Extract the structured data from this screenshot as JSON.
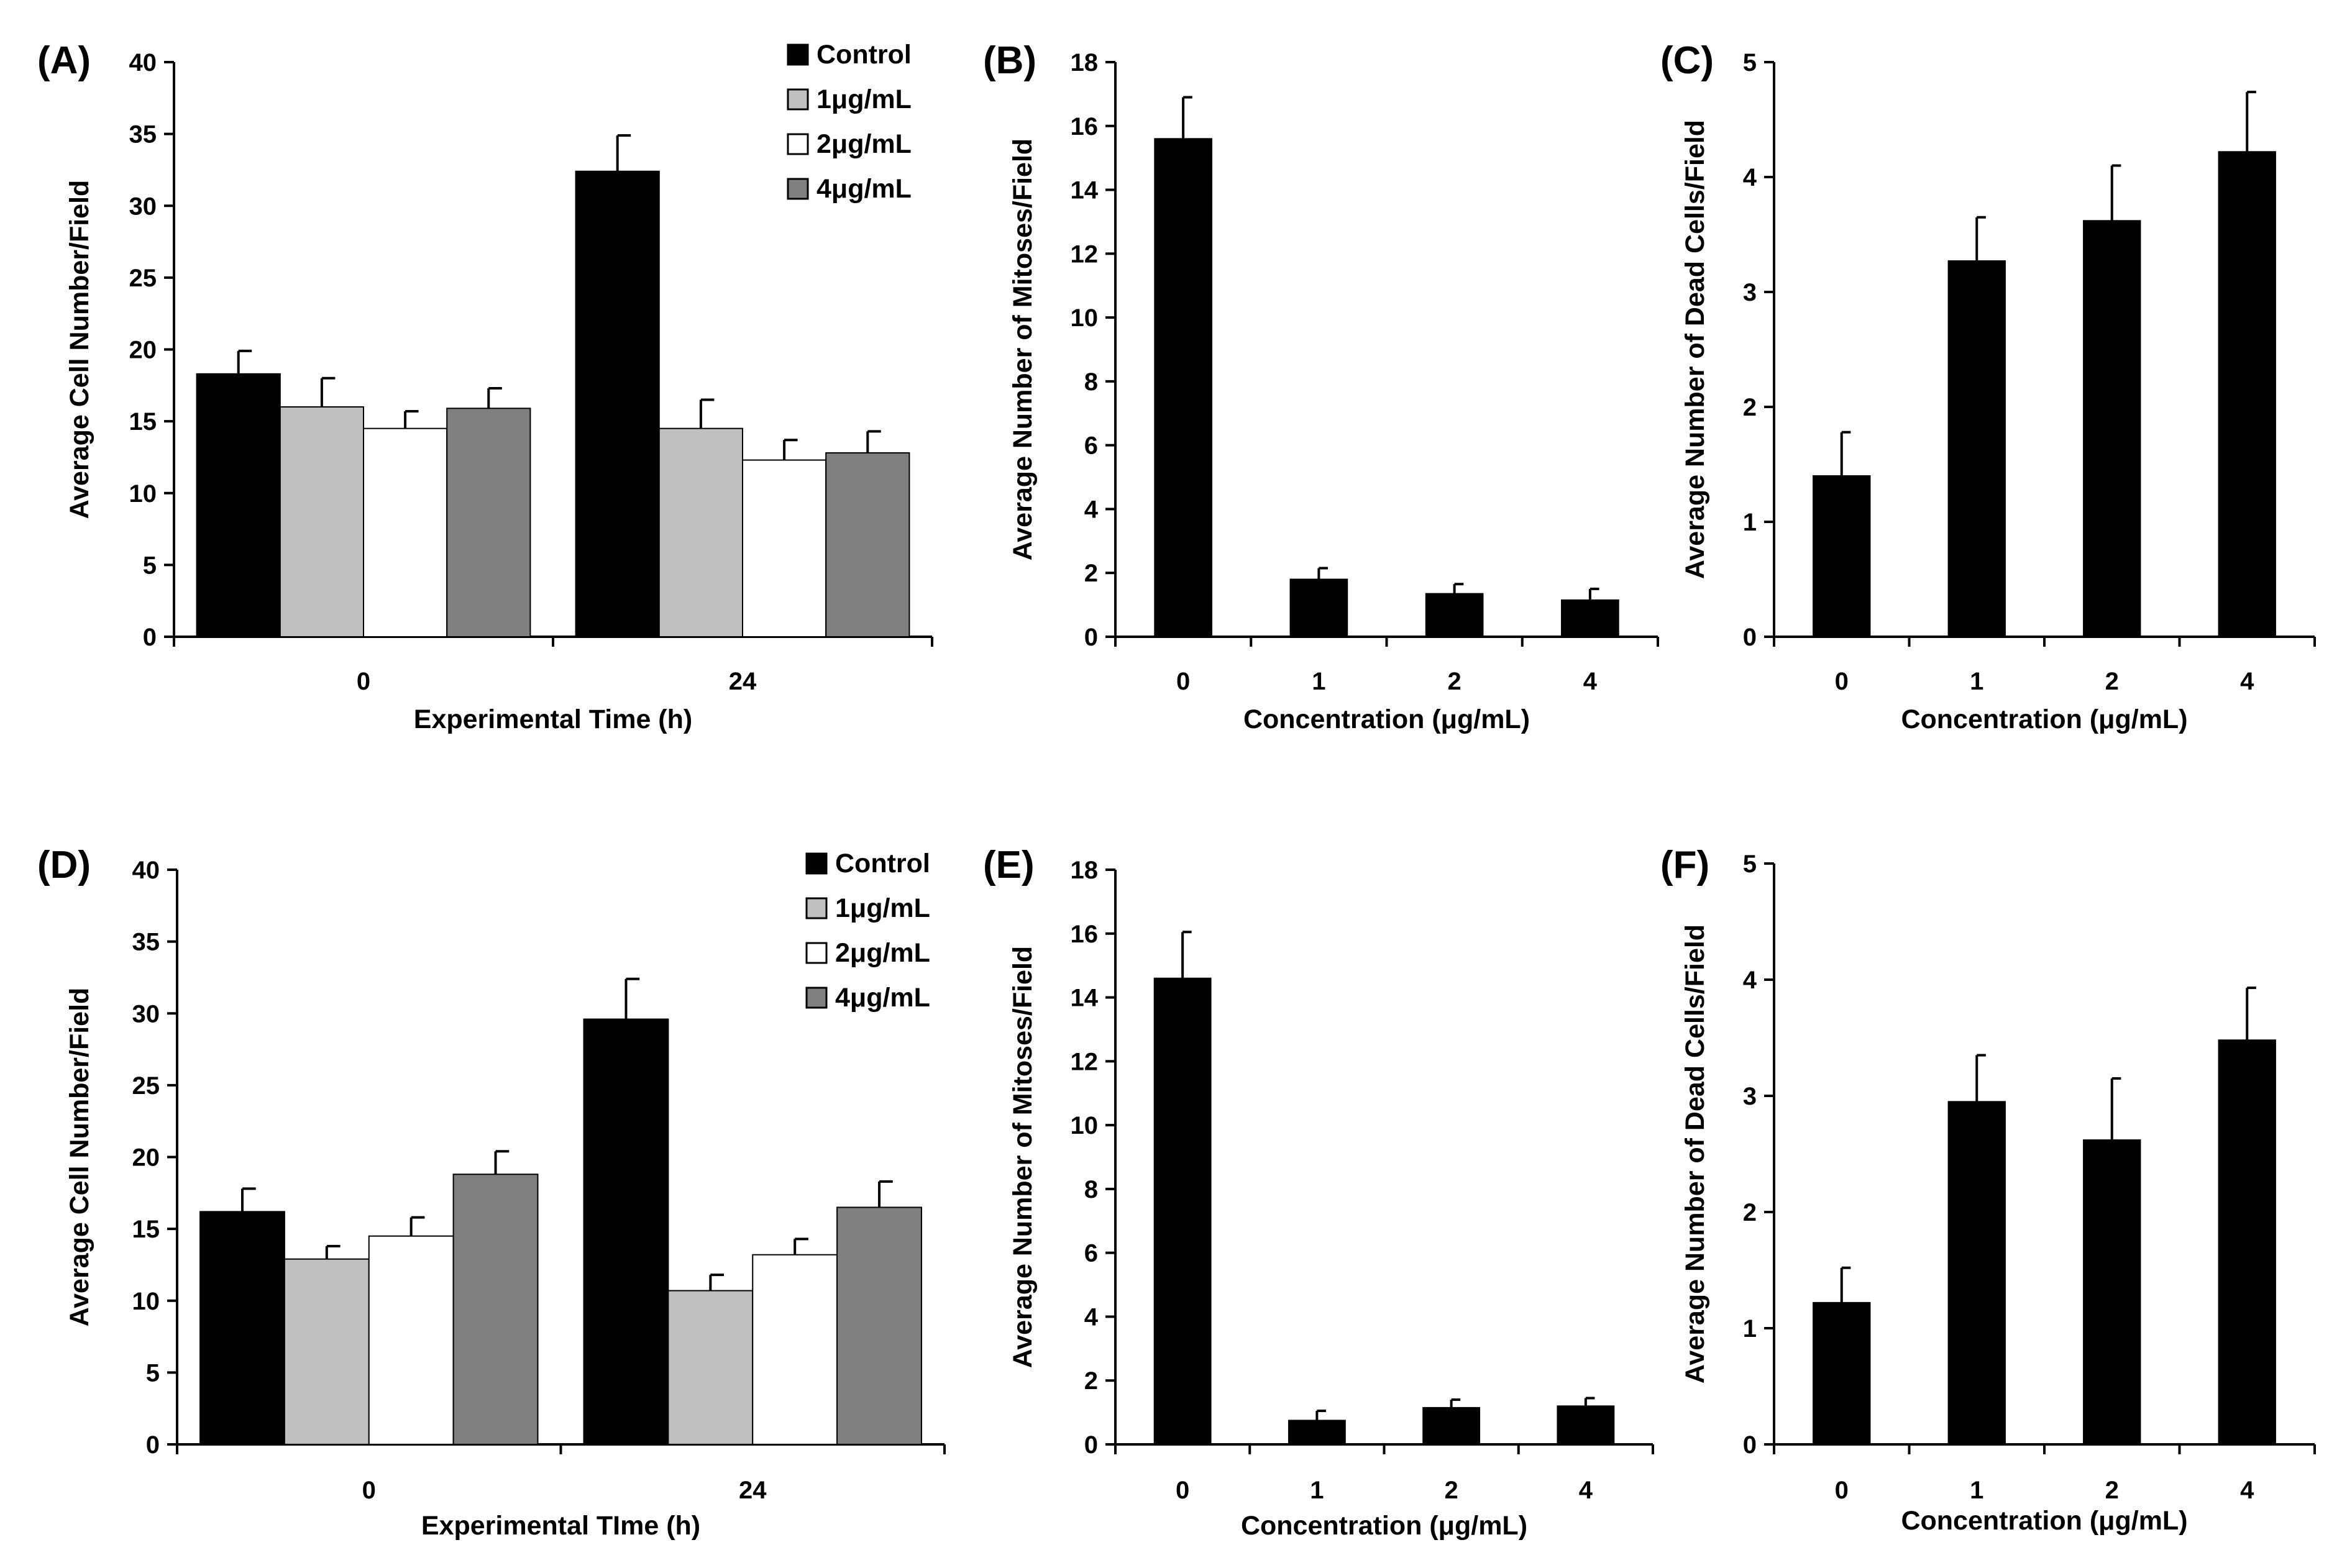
{
  "chart_data": [
    {
      "panel": "(A)",
      "type": "bar",
      "categories": [
        "0",
        "24"
      ],
      "series": [
        {
          "name": "Control",
          "color": "#000000",
          "values": [
            18.3,
            32.4
          ],
          "errors": [
            1.6,
            2.5
          ]
        },
        {
          "name": "1μg/mL",
          "color": "#c0c0c0",
          "values": [
            16.0,
            14.5
          ],
          "errors": [
            2.0,
            2.0
          ]
        },
        {
          "name": "2μg/mL",
          "color": "#ffffff",
          "values": [
            14.5,
            12.3
          ],
          "errors": [
            1.2,
            1.4
          ]
        },
        {
          "name": "4μg/mL",
          "color": "#808080",
          "values": [
            15.9,
            12.8
          ],
          "errors": [
            1.4,
            1.5
          ]
        }
      ],
      "xlabel": "Experimental Time (h)",
      "ylabel": "Average Cell Number/Field",
      "ylim": [
        0,
        40
      ],
      "yticks": [
        0,
        5,
        10,
        15,
        20,
        25,
        30,
        35,
        40
      ],
      "legend": "top-right"
    },
    {
      "panel": "(B)",
      "type": "bar",
      "categories": [
        "0",
        "1",
        "2",
        "4"
      ],
      "series": [
        {
          "name": "Mitoses",
          "color": "#000000",
          "values": [
            15.6,
            1.8,
            1.35,
            1.15
          ],
          "errors": [
            1.3,
            0.35,
            0.3,
            0.35
          ]
        }
      ],
      "xlabel": "Concentration (μg/mL)",
      "ylabel": "Average Number of Mitoses/Field",
      "ylim": [
        0,
        18
      ],
      "yticks": [
        0,
        2,
        4,
        6,
        8,
        10,
        12,
        14,
        16,
        18
      ]
    },
    {
      "panel": "(C)",
      "type": "bar",
      "categories": [
        "0",
        "1",
        "2",
        "4"
      ],
      "series": [
        {
          "name": "Dead cells",
          "color": "#000000",
          "values": [
            1.4,
            3.27,
            3.62,
            4.22
          ],
          "errors": [
            0.38,
            0.38,
            0.48,
            0.52
          ]
        }
      ],
      "xlabel": "Concentration (μg/mL)",
      "ylabel": "Average Number of Dead Cells/Field",
      "ylim": [
        0,
        5
      ],
      "yticks": [
        0,
        1,
        2,
        3,
        4,
        5
      ]
    },
    {
      "panel": "(D)",
      "type": "bar",
      "categories": [
        "0",
        "24"
      ],
      "series": [
        {
          "name": "Control",
          "color": "#000000",
          "values": [
            16.2,
            29.6
          ],
          "errors": [
            1.6,
            2.8
          ]
        },
        {
          "name": "1μg/mL",
          "color": "#c0c0c0",
          "values": [
            12.9,
            10.7
          ],
          "errors": [
            0.9,
            1.1
          ]
        },
        {
          "name": "2μg/mL",
          "color": "#ffffff",
          "values": [
            14.5,
            13.2
          ],
          "errors": [
            1.3,
            1.1
          ]
        },
        {
          "name": "4μg/mL",
          "color": "#808080",
          "values": [
            18.8,
            16.5
          ],
          "errors": [
            1.6,
            1.8
          ]
        }
      ],
      "xlabel": "Experimental TIme (h)",
      "ylabel": "Average Cell Number/Field",
      "ylim": [
        0,
        40
      ],
      "yticks": [
        0,
        5,
        10,
        15,
        20,
        25,
        30,
        35,
        40
      ],
      "legend": "top-right"
    },
    {
      "panel": "(E)",
      "type": "bar",
      "categories": [
        "0",
        "1",
        "2",
        "4"
      ],
      "series": [
        {
          "name": "Mitoses",
          "color": "#000000",
          "values": [
            14.6,
            0.75,
            1.15,
            1.2
          ],
          "errors": [
            1.45,
            0.3,
            0.25,
            0.25
          ]
        }
      ],
      "xlabel": "Concentration (μg/mL)",
      "ylabel": "Average Number of Mitoses/Field",
      "ylim": [
        0,
        18
      ],
      "yticks": [
        0,
        2,
        4,
        6,
        8,
        10,
        12,
        14,
        16,
        18
      ]
    },
    {
      "panel": "(F)",
      "type": "bar",
      "categories": [
        "0",
        "1",
        "2",
        "4"
      ],
      "series": [
        {
          "name": "Dead cells",
          "color": "#000000",
          "values": [
            1.22,
            2.95,
            2.62,
            3.48
          ],
          "errors": [
            0.3,
            0.4,
            0.53,
            0.45
          ]
        }
      ],
      "xlabel": "Concentration (μg/mL)",
      "ylabel": "Average Number of Dead Cells/Field",
      "ylim": [
        0,
        5
      ],
      "yticks": [
        0,
        1,
        2,
        3,
        4,
        5
      ]
    }
  ]
}
